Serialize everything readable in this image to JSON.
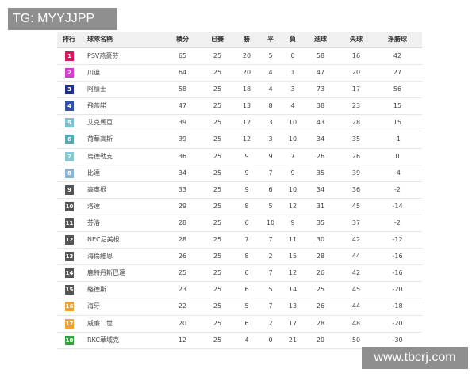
{
  "watermark_top": "TG: MYYJJPP",
  "watermark_bottom": "www.tbcrj.com",
  "table": {
    "columns": [
      "排行",
      "球隊名稱",
      "積分",
      "已賽",
      "勝",
      "平",
      "負",
      "進球",
      "失球",
      "淨勝球"
    ],
    "rows": [
      [
        1,
        "PSV燕豪芬",
        65,
        25,
        20,
        5,
        0,
        58,
        16,
        42
      ],
      [
        2,
        "川迪",
        64,
        25,
        20,
        4,
        1,
        47,
        20,
        27
      ],
      [
        3,
        "阿積士",
        58,
        25,
        18,
        4,
        3,
        73,
        17,
        56
      ],
      [
        4,
        "飛燕諾",
        47,
        25,
        13,
        8,
        4,
        38,
        23,
        15
      ],
      [
        5,
        "艾克馬亞",
        39,
        25,
        12,
        3,
        10,
        43,
        28,
        15
      ],
      [
        6,
        "荷華高斯",
        39,
        25,
        12,
        3,
        10,
        34,
        35,
        -1
      ],
      [
        7,
        "烏德勒支",
        36,
        25,
        9,
        9,
        7,
        26,
        26,
        0
      ],
      [
        8,
        "比達",
        34,
        25,
        9,
        7,
        9,
        35,
        39,
        -4
      ],
      [
        9,
        "高寧根",
        33,
        25,
        9,
        6,
        10,
        34,
        36,
        -2
      ],
      [
        10,
        "洛達",
        29,
        25,
        8,
        5,
        12,
        31,
        45,
        -14
      ],
      [
        11,
        "芬洛",
        28,
        25,
        6,
        10,
        9,
        35,
        37,
        -2
      ],
      [
        12,
        "NEC尼美根",
        28,
        25,
        7,
        7,
        11,
        30,
        42,
        -12
      ],
      [
        13,
        "海倫維恩",
        26,
        25,
        8,
        2,
        15,
        28,
        44,
        -16
      ],
      [
        14,
        "鹿特丹斯巴達",
        25,
        25,
        6,
        7,
        12,
        26,
        42,
        -16
      ],
      [
        15,
        "絡德斯",
        23,
        25,
        6,
        5,
        14,
        25,
        45,
        -20
      ],
      [
        16,
        "海牙",
        22,
        25,
        5,
        7,
        13,
        26,
        44,
        -18
      ],
      [
        17,
        "威廉二世",
        20,
        25,
        6,
        2,
        17,
        28,
        48,
        -20
      ],
      [
        18,
        "RKC華域克",
        12,
        25,
        4,
        0,
        21,
        20,
        50,
        -30
      ]
    ]
  }
}
